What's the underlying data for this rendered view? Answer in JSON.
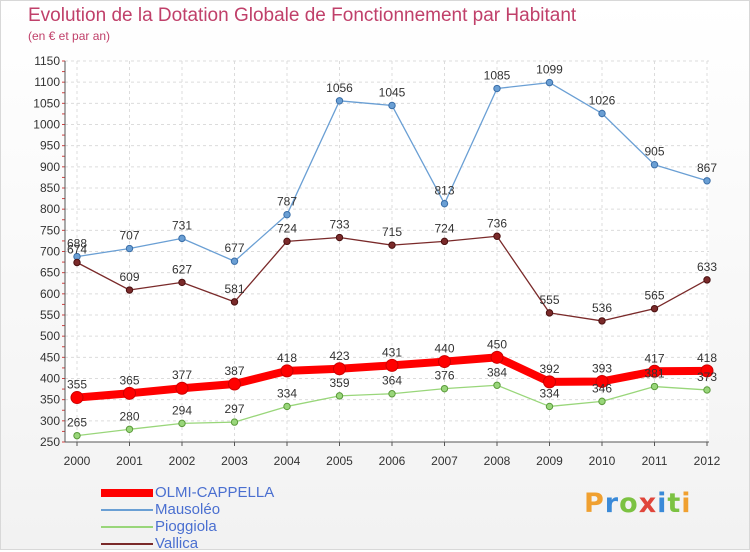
{
  "title": "Evolution de la Dotation Globale de Fonctionnement par Habitant",
  "subtitle": "(en € et par an)",
  "logo": {
    "letters": [
      "P",
      "r",
      "o",
      "x",
      "i",
      "t",
      "i"
    ],
    "colors": [
      "#f0a030",
      "#3a8ad8",
      "#7cc242",
      "#e0453a",
      "#3a8ad8",
      "#7cc242",
      "#f0a030"
    ]
  },
  "chart_data": {
    "type": "line",
    "x": [
      "2000",
      "2001",
      "2002",
      "2003",
      "2004",
      "2005",
      "2006",
      "2007",
      "2008",
      "2009",
      "2010",
      "2011",
      "2012"
    ],
    "ylim": [
      250,
      1150
    ],
    "yticks": [
      250,
      300,
      350,
      400,
      450,
      500,
      550,
      600,
      650,
      700,
      750,
      800,
      850,
      900,
      950,
      1000,
      1050,
      1100,
      1150
    ],
    "grid": true,
    "legend_position": "bottom-left",
    "series": [
      {
        "name": "OLMI-CAPPELLA",
        "color": "#ff0000",
        "values": [
          355,
          365,
          377,
          387,
          418,
          423,
          431,
          440,
          450,
          392,
          393,
          417,
          418
        ]
      },
      {
        "name": "Mausoléo",
        "color": "#6a9fd4",
        "values": [
          688,
          707,
          731,
          677,
          787,
          1056,
          1045,
          813,
          1085,
          1099,
          1026,
          905,
          867
        ]
      },
      {
        "name": "Pioggiola",
        "color": "#99d67a",
        "values": [
          265,
          280,
          294,
          297,
          334,
          359,
          364,
          376,
          384,
          334,
          346,
          381,
          373
        ]
      },
      {
        "name": "Vallica",
        "color": "#7a2a2a",
        "values": [
          674,
          609,
          627,
          581,
          724,
          733,
          715,
          724,
          736,
          555,
          536,
          565,
          633
        ]
      }
    ]
  }
}
